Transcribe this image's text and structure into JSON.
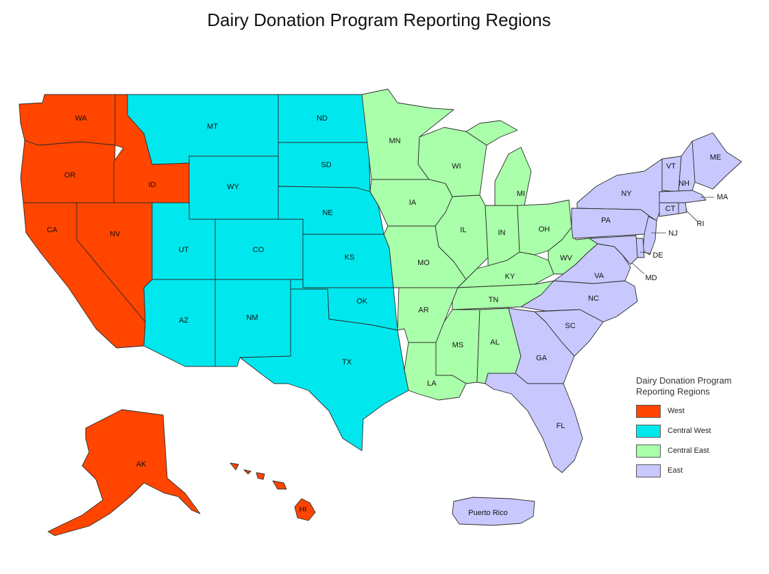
{
  "title": "Dairy Donation Program Reporting Regions",
  "colors": {
    "west": "#ff4500",
    "central_west": "#00e8ee",
    "central_east": "#aaffaa",
    "east": "#c8c8ff"
  },
  "legend": {
    "title_line1": "Dairy Donation Program",
    "title_line2": "Reporting Regions",
    "items": [
      {
        "label": "West",
        "color": "#ff4500"
      },
      {
        "label": "Central West",
        "color": "#00e8ee"
      },
      {
        "label": "Central East",
        "color": "#aaffaa"
      },
      {
        "label": "East",
        "color": "#c8c8ff"
      }
    ]
  },
  "states": {
    "WA": "WA",
    "OR": "OR",
    "ID": "ID",
    "CA": "CA",
    "NV": "NV",
    "AK": "AK",
    "HI": "HI",
    "MT": "MT",
    "ND": "ND",
    "SD": "SD",
    "WY": "WY",
    "NE": "NE",
    "UT": "UT",
    "CO": "CO",
    "KS": "KS",
    "AZ": "AZ",
    "NM": "NM",
    "OK": "OK",
    "TX": "TX",
    "MN": "MN",
    "WI": "WI",
    "IA": "IA",
    "MI": "MI",
    "IL": "IL",
    "IN": "IN",
    "OH": "OH",
    "MO": "MO",
    "KY": "KY",
    "WV": "WV",
    "AR": "AR",
    "TN": "TN",
    "MS": "MS",
    "AL": "AL",
    "LA": "LA",
    "ME": "ME",
    "VT": "VT",
    "NH": "NH",
    "NY": "NY",
    "MA": "MA",
    "CT": "CT",
    "RI": "RI",
    "PA": "PA",
    "NJ": "NJ",
    "DE": "DE",
    "MD": "MD",
    "VA": "VA",
    "NC": "NC",
    "SC": "SC",
    "GA": "GA",
    "FL": "FL",
    "PR": "Puerto Rico"
  }
}
